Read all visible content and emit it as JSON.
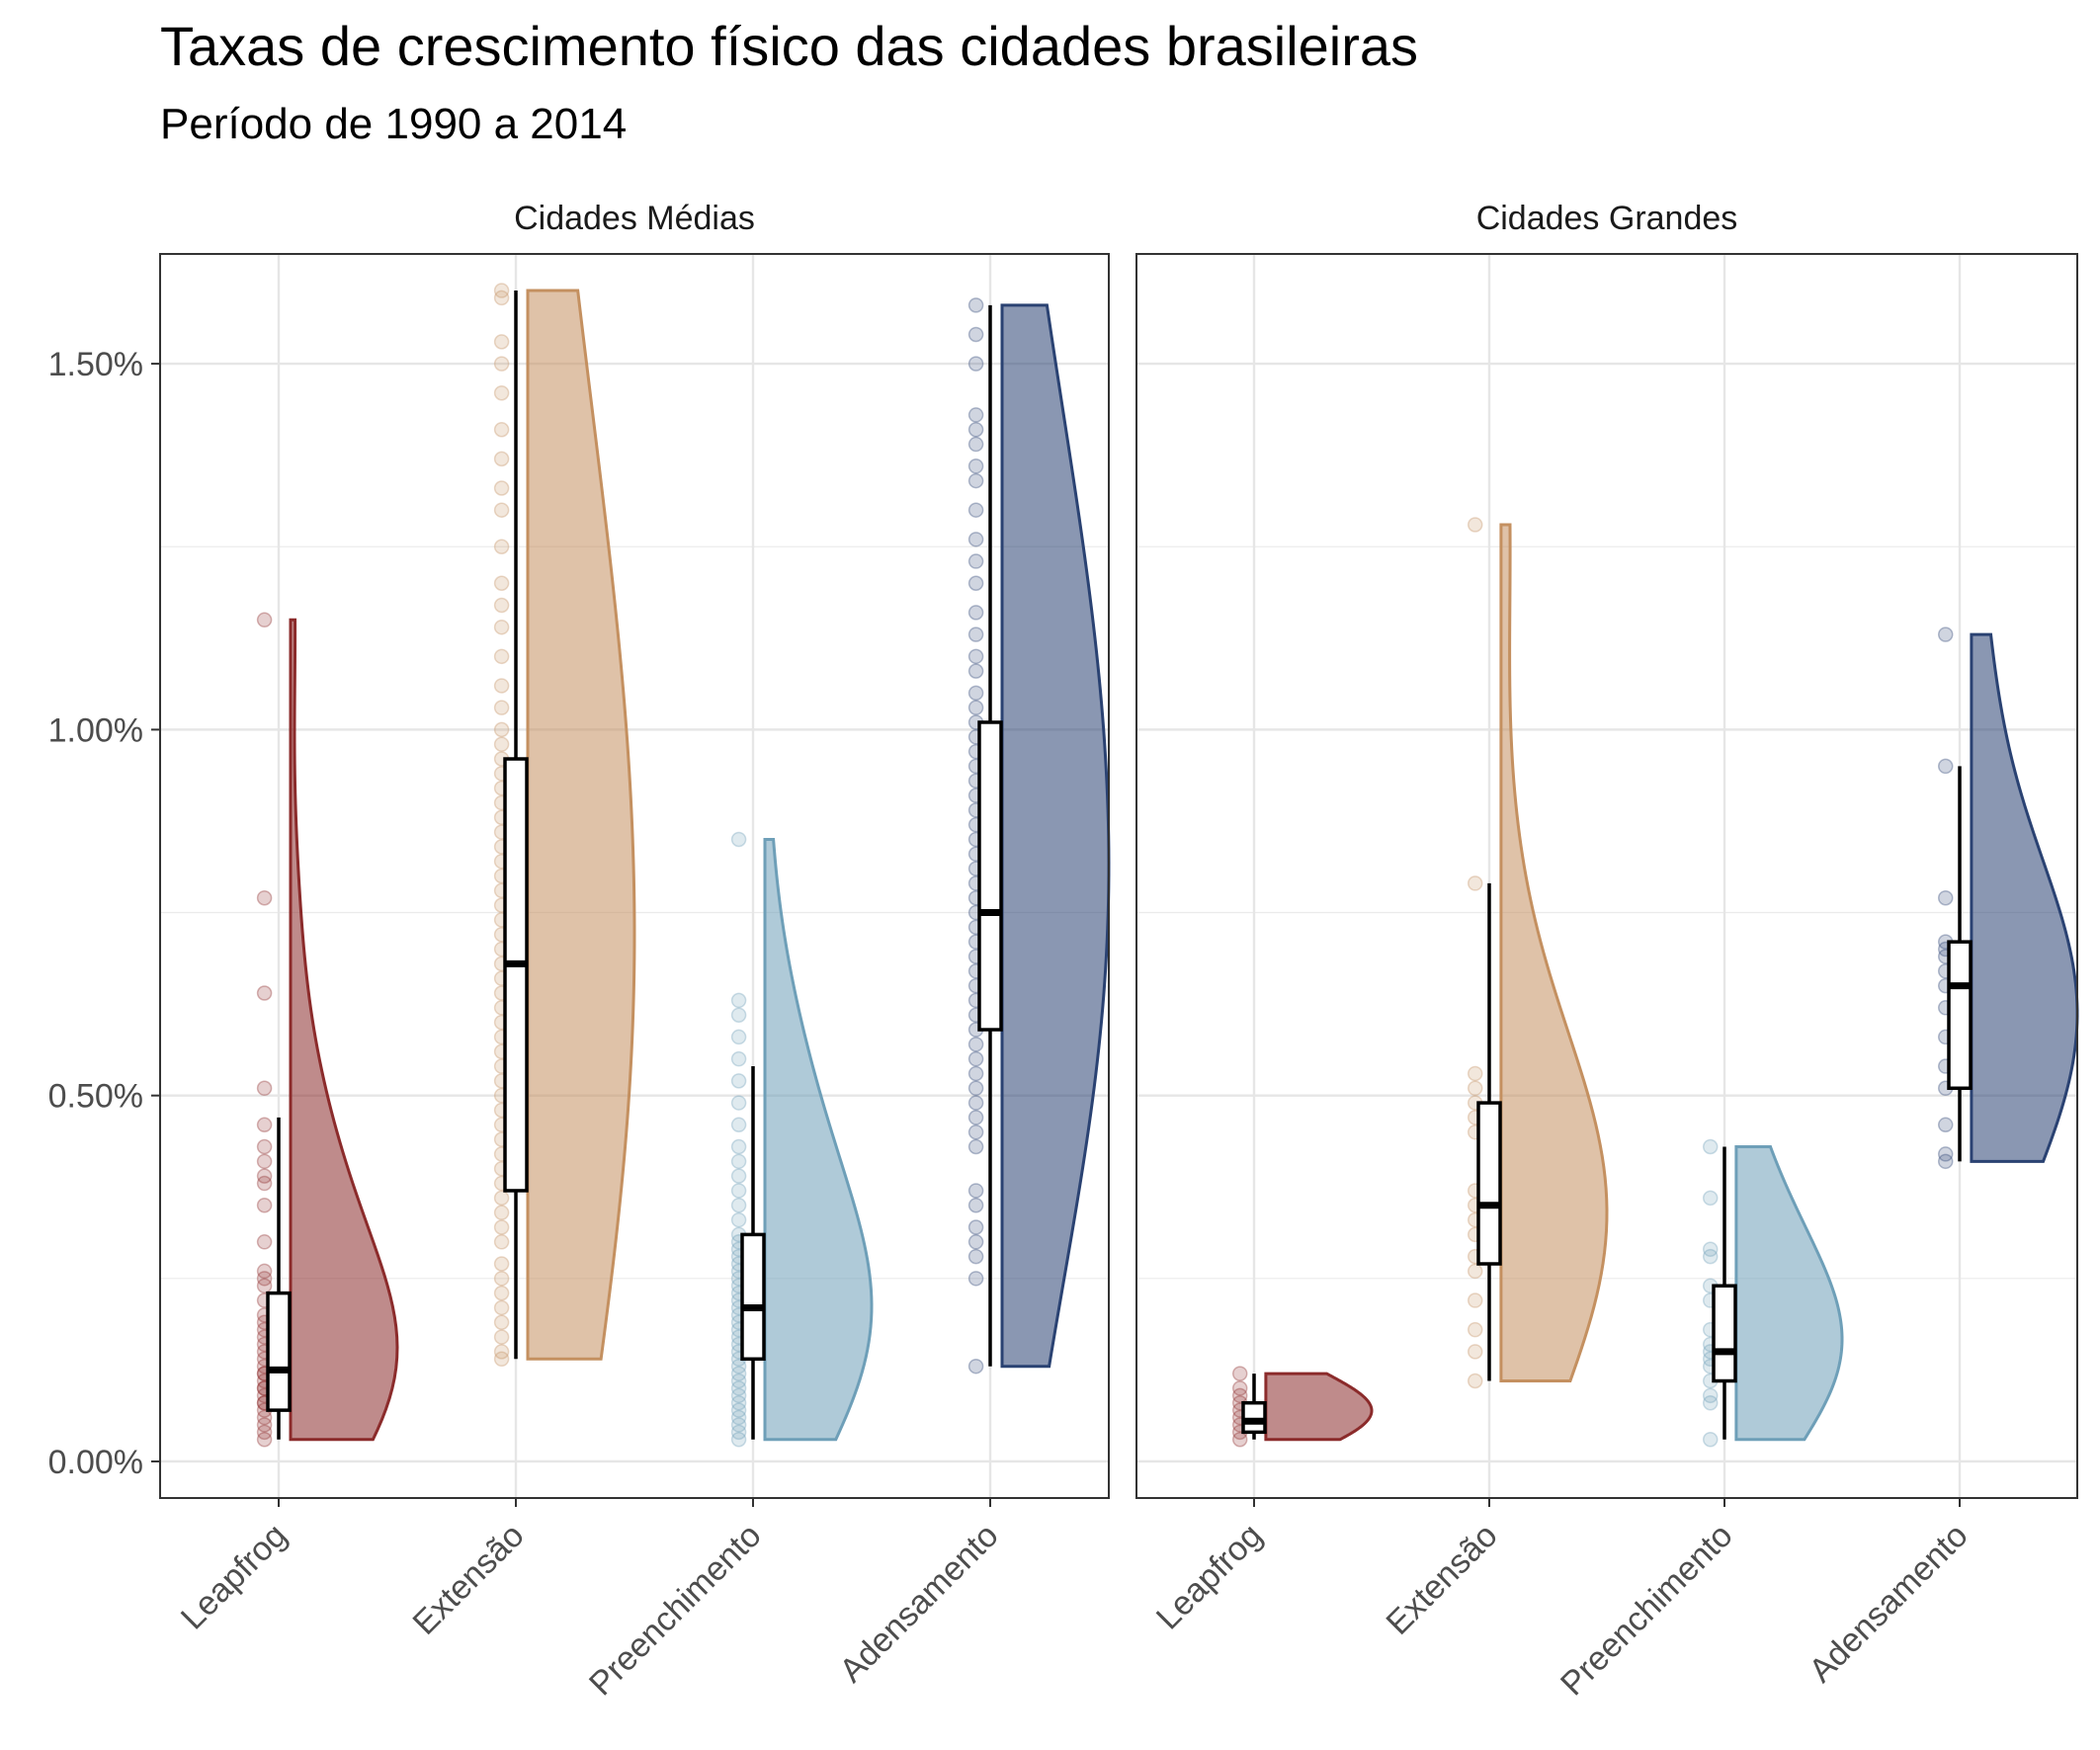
{
  "chart_data": {
    "type": "raincloud",
    "title": "Taxas de crescimento físico das cidades brasileiras",
    "subtitle": "Período de 1990 a 2014",
    "xlabel": "",
    "ylabel": "",
    "y_range": [
      -0.0005,
      0.0165
    ],
    "y_ticks": [
      0.0,
      0.005,
      0.01,
      0.015
    ],
    "y_tick_labels": [
      "0.00%",
      "0.50%",
      "1.00%",
      "1.50%"
    ],
    "grid": true,
    "legend": "none",
    "categories": [
      "Leapfrog",
      "Extensão",
      "Preenchimento",
      "Adensamento"
    ],
    "colors": {
      "Leapfrog": "#8B2B2B",
      "Extensão": "#C49060",
      "Preenchimento": "#6E9FB8",
      "Adensamento": "#2A4272"
    },
    "panels": [
      {
        "name": "Cidades Médias",
        "series": [
          {
            "category": "Leapfrog",
            "box": {
              "min": 0.0003,
              "q1": 0.0007,
              "median": 0.00125,
              "q3": 0.0023,
              "max": 0.0047
            },
            "density_peak": 0.0008,
            "points": [
              0.0003,
              0.0004,
              0.0005,
              0.0006,
              0.0007,
              0.0008,
              0.0008,
              0.0009,
              0.001,
              0.001,
              0.0011,
              0.0012,
              0.0012,
              0.0013,
              0.0014,
              0.0015,
              0.0016,
              0.0017,
              0.0018,
              0.0019,
              0.002,
              0.0022,
              0.0024,
              0.0025,
              0.0026,
              0.003,
              0.0035,
              0.0038,
              0.0039,
              0.0041,
              0.0043,
              0.0046,
              0.0051,
              0.0064,
              0.0077,
              0.0115
            ]
          },
          {
            "category": "Extensão",
            "box": {
              "min": 0.0014,
              "q1": 0.0037,
              "median": 0.0068,
              "q3": 0.0096,
              "max": 0.016
            },
            "density_peak": 0.0035,
            "points": [
              0.0014,
              0.0015,
              0.0017,
              0.0019,
              0.0021,
              0.0023,
              0.0025,
              0.0027,
              0.003,
              0.0032,
              0.0034,
              0.0036,
              0.0038,
              0.004,
              0.0042,
              0.0044,
              0.0046,
              0.0048,
              0.005,
              0.0052,
              0.0054,
              0.0056,
              0.0058,
              0.006,
              0.0062,
              0.0064,
              0.0066,
              0.0068,
              0.007,
              0.0072,
              0.0074,
              0.0076,
              0.0078,
              0.008,
              0.0082,
              0.0084,
              0.0086,
              0.0088,
              0.009,
              0.0092,
              0.0094,
              0.0096,
              0.0098,
              0.01,
              0.0103,
              0.0106,
              0.011,
              0.0114,
              0.0117,
              0.012,
              0.0125,
              0.013,
              0.0133,
              0.0137,
              0.0141,
              0.0146,
              0.015,
              0.0153,
              0.0159,
              0.016
            ]
          },
          {
            "category": "Preenchimento",
            "box": {
              "min": 0.0003,
              "q1": 0.0014,
              "median": 0.0021,
              "q3": 0.0031,
              "max": 0.0054
            },
            "density_peak": 0.0018,
            "points": [
              0.0003,
              0.0004,
              0.0005,
              0.0006,
              0.0007,
              0.0008,
              0.0009,
              0.001,
              0.0011,
              0.0012,
              0.0013,
              0.0014,
              0.0015,
              0.0016,
              0.0017,
              0.0018,
              0.0019,
              0.002,
              0.0021,
              0.0022,
              0.0023,
              0.0024,
              0.0025,
              0.0026,
              0.0027,
              0.0028,
              0.0029,
              0.003,
              0.0031,
              0.0033,
              0.0035,
              0.0037,
              0.0039,
              0.0041,
              0.0043,
              0.0046,
              0.0049,
              0.0052,
              0.0055,
              0.0058,
              0.0061,
              0.0063,
              0.0085
            ]
          },
          {
            "category": "Adensamento",
            "box": {
              "min": 0.0013,
              "q1": 0.0059,
              "median": 0.0075,
              "q3": 0.0101,
              "max": 0.0158
            },
            "density_peak": 0.0075,
            "points": [
              0.0013,
              0.0025,
              0.0028,
              0.003,
              0.0032,
              0.0035,
              0.0037,
              0.0043,
              0.0045,
              0.0047,
              0.0049,
              0.0051,
              0.0053,
              0.0055,
              0.0057,
              0.0059,
              0.0061,
              0.0063,
              0.0065,
              0.0067,
              0.0069,
              0.0071,
              0.0073,
              0.0075,
              0.0077,
              0.0079,
              0.0081,
              0.0083,
              0.0085,
              0.0087,
              0.0089,
              0.0091,
              0.0093,
              0.0095,
              0.0097,
              0.0099,
              0.0101,
              0.0103,
              0.0105,
              0.0108,
              0.011,
              0.0113,
              0.0116,
              0.012,
              0.0123,
              0.0126,
              0.013,
              0.0134,
              0.0136,
              0.0139,
              0.0141,
              0.0143,
              0.015,
              0.0154,
              0.0158
            ]
          }
        ]
      },
      {
        "name": "Cidades Grandes",
        "series": [
          {
            "category": "Leapfrog",
            "box": {
              "min": 0.0003,
              "q1": 0.0004,
              "median": 0.00055,
              "q3": 0.0008,
              "max": 0.0012
            },
            "density_peak": 0.0005,
            "points": [
              0.0003,
              0.0004,
              0.0005,
              0.0006,
              0.0007,
              0.0008,
              0.0009,
              0.001,
              0.0012
            ]
          },
          {
            "category": "Extensão",
            "box": {
              "min": 0.0011,
              "q1": 0.0027,
              "median": 0.0035,
              "q3": 0.0049,
              "max": 0.0079
            },
            "density_peak": 0.0045,
            "points": [
              0.0011,
              0.0015,
              0.0018,
              0.0022,
              0.0026,
              0.0028,
              0.0031,
              0.0033,
              0.0035,
              0.0037,
              0.0045,
              0.0047,
              0.0049,
              0.0051,
              0.0053,
              0.0079,
              0.0128
            ]
          },
          {
            "category": "Preenchimento",
            "box": {
              "min": 0.0003,
              "q1": 0.0011,
              "median": 0.0015,
              "q3": 0.0024,
              "max": 0.0043
            },
            "density_peak": 0.0013,
            "points": [
              0.0003,
              0.0008,
              0.0009,
              0.0011,
              0.0013,
              0.0014,
              0.0015,
              0.0016,
              0.0018,
              0.0022,
              0.0024,
              0.0028,
              0.0029,
              0.0036,
              0.0043
            ]
          },
          {
            "category": "Adensamento",
            "box": {
              "min": 0.0041,
              "q1": 0.0051,
              "median": 0.0065,
              "q3": 0.0071,
              "max": 0.0095
            },
            "density_peak": 0.0068,
            "points": [
              0.0041,
              0.0042,
              0.0046,
              0.0051,
              0.0054,
              0.0058,
              0.0062,
              0.0065,
              0.0067,
              0.0069,
              0.007,
              0.0071,
              0.0077,
              0.0095,
              0.0113
            ]
          }
        ]
      }
    ]
  }
}
